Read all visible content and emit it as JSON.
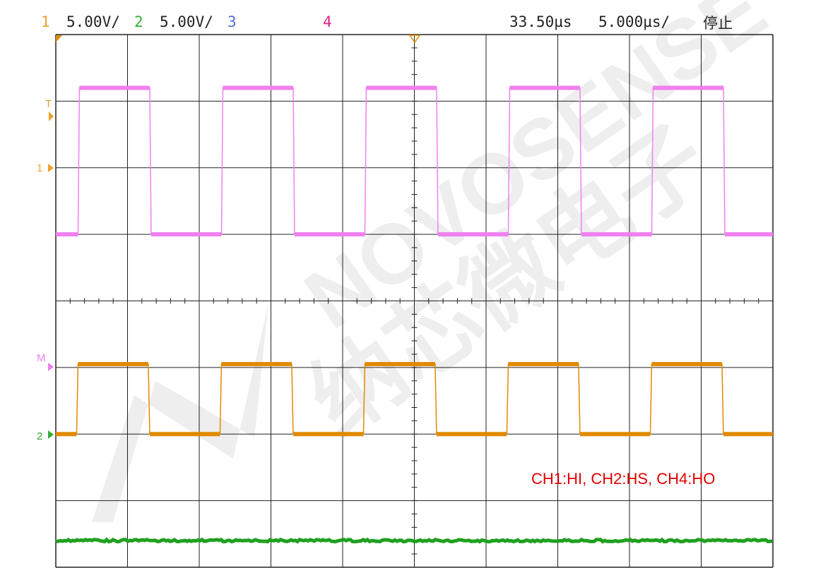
{
  "header": {
    "ch1": {
      "label": "1",
      "scale": "5.00V/",
      "color": "#f0a030"
    },
    "ch2": {
      "label": "2",
      "scale": "5.00V/",
      "color": "#30b030"
    },
    "ch3": {
      "label": "3",
      "color": "#5070e0"
    },
    "ch4": {
      "label": "4",
      "color": "#e0208a"
    },
    "trigger_pos": "33.50µs",
    "timebase": "5.000µs/",
    "status": "停止"
  },
  "markers": {
    "trigger": "T",
    "ch1": "1",
    "math": "M",
    "ch2": "2"
  },
  "annotation": {
    "text": "CH1:HI, CH2:HS, CH4:HO",
    "color": "#e00000"
  },
  "watermark": {
    "latin": "NOVOSENSE",
    "cjk": "纳芯微电子"
  },
  "chart_data": {
    "type": "line",
    "grid": true,
    "x_divisions": 10,
    "y_divisions": 8,
    "xlim_us": [
      0,
      50
    ],
    "series": [
      {
        "name": "1",
        "color": "#e08a00",
        "kind": "square",
        "period_us": 10,
        "first_rise_us": 1.45,
        "high_us": 5.0,
        "low_div": 2.0,
        "high_div": 3.05
      },
      {
        "name": "M",
        "color": "#f080f0",
        "kind": "square",
        "period_us": 10,
        "first_rise_us": 1.55,
        "high_us": 5.0,
        "low_div": 5.0,
        "high_div": 7.2
      },
      {
        "name": "2",
        "color": "#20a020",
        "kind": "flat",
        "level_div": 0.4
      }
    ]
  }
}
